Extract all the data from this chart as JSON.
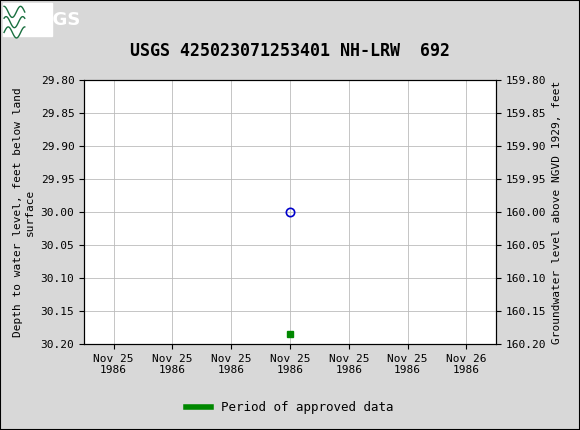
{
  "title": "USGS 425023071253401 NH-LRW  692",
  "header_bg_color": "#1a7040",
  "header_text_color": "#ffffff",
  "plot_bg_color": "#ffffff",
  "fig_bg_color": "#d8d8d8",
  "grid_color": "#bbbbbb",
  "ylabel_left": "Depth to water level, feet below land\nsurface",
  "ylabel_right": "Groundwater level above NGVD 1929, feet",
  "ylim_left": [
    29.8,
    30.2
  ],
  "ylim_right": [
    159.8,
    160.2
  ],
  "yticks_left": [
    29.8,
    29.85,
    29.9,
    29.95,
    30.0,
    30.05,
    30.1,
    30.15,
    30.2
  ],
  "yticks_right": [
    159.8,
    159.85,
    159.9,
    159.95,
    160.0,
    160.05,
    160.1,
    160.15,
    160.2
  ],
  "ytick_labels_left": [
    "29.80",
    "29.85",
    "29.90",
    "29.95",
    "30.00",
    "30.05",
    "30.10",
    "30.15",
    "30.20"
  ],
  "ytick_labels_right": [
    "159.80",
    "159.85",
    "159.90",
    "159.95",
    "160.00",
    "160.05",
    "160.10",
    "160.15",
    "160.20"
  ],
  "data_point_x": 3,
  "data_point_y": 30.0,
  "data_point_color": "#0000cc",
  "data_point_markerfacecolor": "none",
  "approved_marker_x": 3,
  "approved_marker_y": 30.185,
  "approved_marker_color": "#008800",
  "legend_label": "Period of approved data",
  "legend_color": "#008800",
  "font_family": "monospace",
  "tick_label_fontsize": 8,
  "axis_label_fontsize": 8,
  "title_fontsize": 12,
  "xtick_positions": [
    0,
    1,
    2,
    3,
    4,
    5,
    6
  ],
  "xtick_labels": [
    "Nov 25\n1986",
    "Nov 25\n1986",
    "Nov 25\n1986",
    "Nov 25\n1986",
    "Nov 25\n1986",
    "Nov 25\n1986",
    "Nov 26\n1986"
  ],
  "xlim": [
    -0.5,
    6.5
  ]
}
